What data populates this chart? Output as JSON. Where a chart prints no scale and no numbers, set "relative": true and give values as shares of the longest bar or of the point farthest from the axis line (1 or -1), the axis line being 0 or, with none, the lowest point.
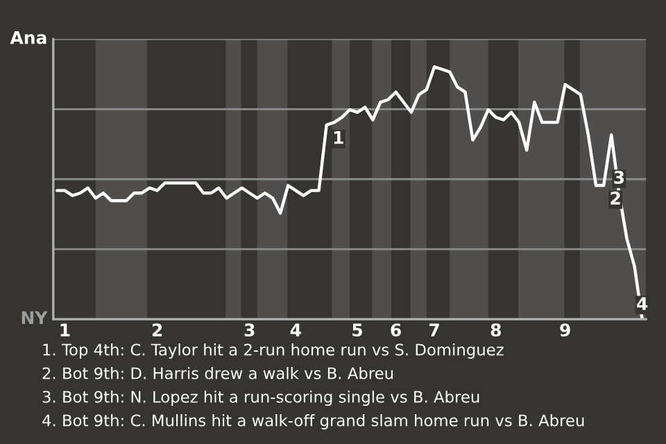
{
  "chart_data": {
    "type": "line",
    "relative": true,
    "categories": [
      null,
      "1",
      null,
      null,
      null,
      null,
      null,
      null,
      null,
      null,
      null,
      null,
      null,
      "2",
      null,
      null,
      null,
      null,
      null,
      null,
      null,
      null,
      null,
      null,
      null,
      "3",
      null,
      null,
      null,
      null,
      null,
      "4",
      null,
      null,
      null,
      null,
      null,
      null,
      null,
      "5",
      null,
      null,
      null,
      null,
      "6",
      null,
      null,
      null,
      null,
      "7",
      null,
      null,
      null,
      null,
      null,
      null,
      null,
      "8",
      null,
      null,
      null,
      null,
      null,
      null,
      null,
      null,
      "9",
      null,
      null,
      null,
      null,
      null,
      null,
      null,
      null,
      null,
      null
    ],
    "series": [
      {
        "values": [
          0.51,
          0.51,
          0.49,
          0.5,
          0.52,
          0.48,
          0.5,
          0.47,
          0.47,
          0.47,
          0.5,
          0.5,
          0.52,
          0.51,
          0.54,
          0.54,
          0.54,
          0.54,
          0.54,
          0.5,
          0.5,
          0.52,
          0.48,
          0.5,
          0.52,
          0.5,
          0.48,
          0.5,
          0.48,
          0.42,
          0.53,
          0.51,
          0.49,
          0.51,
          0.51,
          0.77,
          0.78,
          0.8,
          0.83,
          0.82,
          0.84,
          0.79,
          0.86,
          0.87,
          0.9,
          0.86,
          0.82,
          0.89,
          0.91,
          1,
          0.99,
          0.98,
          0.92,
          0.9,
          0.71,
          0.76,
          0.83,
          0.8,
          0.79,
          0.82,
          0.78,
          0.67,
          0.86,
          0.78,
          0.78,
          0.78,
          0.93,
          0.91,
          0.89,
          0.73,
          0.53,
          0.53,
          0.73,
          0.5,
          0.32,
          0.21,
          0
        ],
        "color": "#ffffff"
      }
    ],
    "grid": "y",
    "annotations": [
      {
        "text": "1",
        "y": 0.77
      },
      {
        "text": "2",
        "y": 0.53
      },
      {
        "text": "3",
        "y": 0.5
      },
      {
        "text": "4",
        "y": 0
      },
      "Ana",
      "NY",
      "1. Top 4th: C. Taylor hit a 2-run home run vs S. Dominguez",
      "2. Bot 9th: D. Harris drew a walk vs B. Abreu",
      "3. Bot 9th: N. Lopez hit a run-scoring single vs B. Abreu",
      "4. Bot 9th: C. Mullins hit a walk-off grand slam home run vs B. Abreu"
    ],
    "marker": "none"
  }
}
